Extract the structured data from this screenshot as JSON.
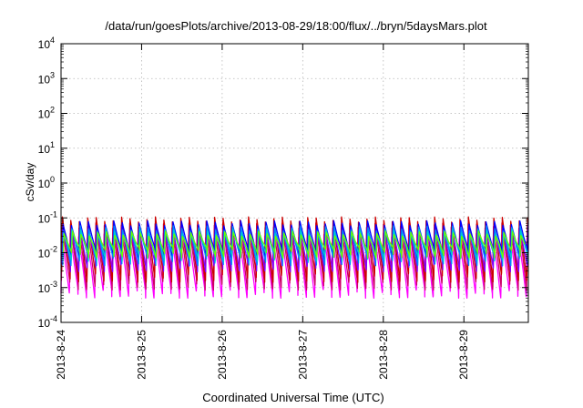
{
  "chart_data": {
    "type": "line",
    "title": "/data/run/goesPlots/archive/2013-08-29/18:00/flux/../bryn/5daysMars.plot",
    "xlabel": "Coordinated Universal Time (UTC)",
    "ylabel": "cSv/day",
    "yscale": "log",
    "ylim_exponents": [
      -4,
      4
    ],
    "y_ticks": [
      {
        "base": "10",
        "exp": "-4"
      },
      {
        "base": "10",
        "exp": "-3"
      },
      {
        "base": "10",
        "exp": "-2"
      },
      {
        "base": "10",
        "exp": "-1"
      },
      {
        "base": "10",
        "exp": "0"
      },
      {
        "base": "10",
        "exp": "1"
      },
      {
        "base": "10",
        "exp": "2"
      },
      {
        "base": "10",
        "exp": "3"
      },
      {
        "base": "10",
        "exp": "4"
      }
    ],
    "x_ticks": [
      "2013-8-24",
      "2013-8-25",
      "2013-8-26",
      "2013-8-27",
      "2013-8-28",
      "2013-8-29"
    ],
    "x_range_days": [
      0,
      5.8
    ],
    "grid": true,
    "legend": "none",
    "cycle_period_days": 0.105,
    "series": [
      {
        "color": "#ff00ff",
        "peak": 0.03,
        "trough": 0.0007
      },
      {
        "color": "#cc0066",
        "peak": 0.06,
        "trough": 0.0012
      },
      {
        "color": "#cc0000",
        "peak": 0.09,
        "trough": 0.002
      },
      {
        "color": "#8000ff",
        "peak": 0.05,
        "trough": 0.004
      },
      {
        "color": "#0000ff",
        "peak": 0.07,
        "trough": 0.009
      },
      {
        "color": "#0088ff",
        "peak": 0.05,
        "trough": 0.006
      },
      {
        "color": "#00cccc",
        "peak": 0.04,
        "trough": 0.008
      },
      {
        "color": "#66ff00",
        "peak": 0.035,
        "trough": 0.01
      }
    ]
  }
}
